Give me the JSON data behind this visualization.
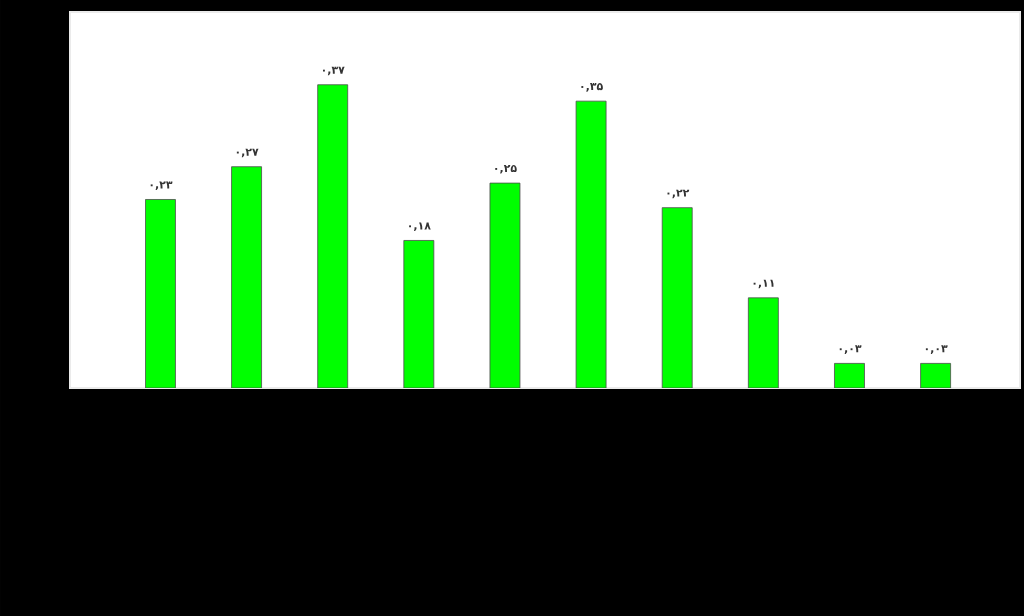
{
  "chart_data": {
    "type": "bar",
    "categories": [
      null,
      null,
      null,
      null,
      null,
      null,
      null,
      null,
      null,
      null
    ],
    "values": [
      0.23,
      0.27,
      0.37,
      0.18,
      0.25,
      0.35,
      0.22,
      0.11,
      0.03,
      0.03
    ],
    "value_labels": [
      "۰,۲۳",
      "۰,۲۷",
      "۰,۳۷",
      "۰,۱۸",
      "۰,۲۵",
      "۰,۳۵",
      "۰,۲۲",
      "۰,۱۱",
      "۰,۰۳",
      "۰,۰۳"
    ],
    "color": "#00ff00"
  }
}
